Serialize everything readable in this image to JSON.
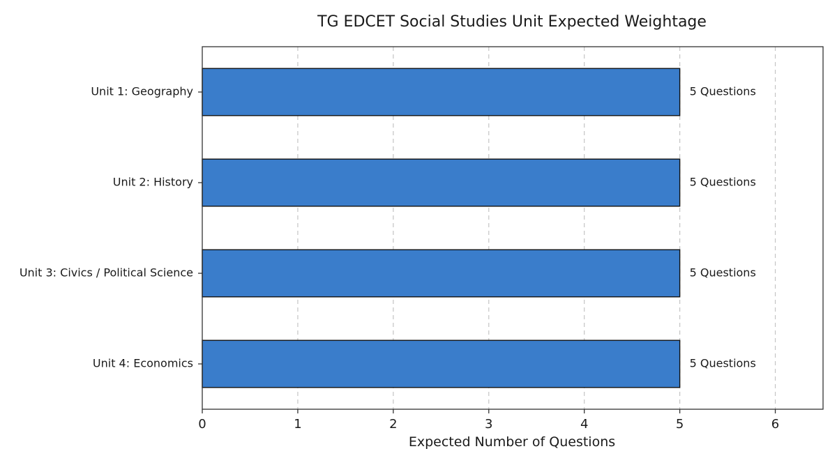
{
  "chart_data": {
    "type": "bar",
    "orientation": "horizontal",
    "title": "TG EDCET Social Studies Unit Expected Weightage",
    "xlabel": "Expected Number of Questions",
    "ylabel": "",
    "categories": [
      "Unit 1: Geography",
      "Unit 2: History",
      "Unit 3: Civics / Political Science",
      "Unit 4: Economics"
    ],
    "values": [
      5,
      5,
      5,
      5
    ],
    "data_labels": [
      "5 Questions",
      "5 Questions",
      "5 Questions",
      "5 Questions"
    ],
    "xlim": [
      0,
      6.5
    ],
    "x_ticks": [
      0,
      1,
      2,
      3,
      4,
      5,
      6
    ],
    "x_tick_labels": [
      "0",
      "1",
      "2",
      "3",
      "4",
      "5",
      "6"
    ],
    "grid": "vertical dashed",
    "bar_color": "#3a7dcb",
    "edge_color": "#111111"
  }
}
